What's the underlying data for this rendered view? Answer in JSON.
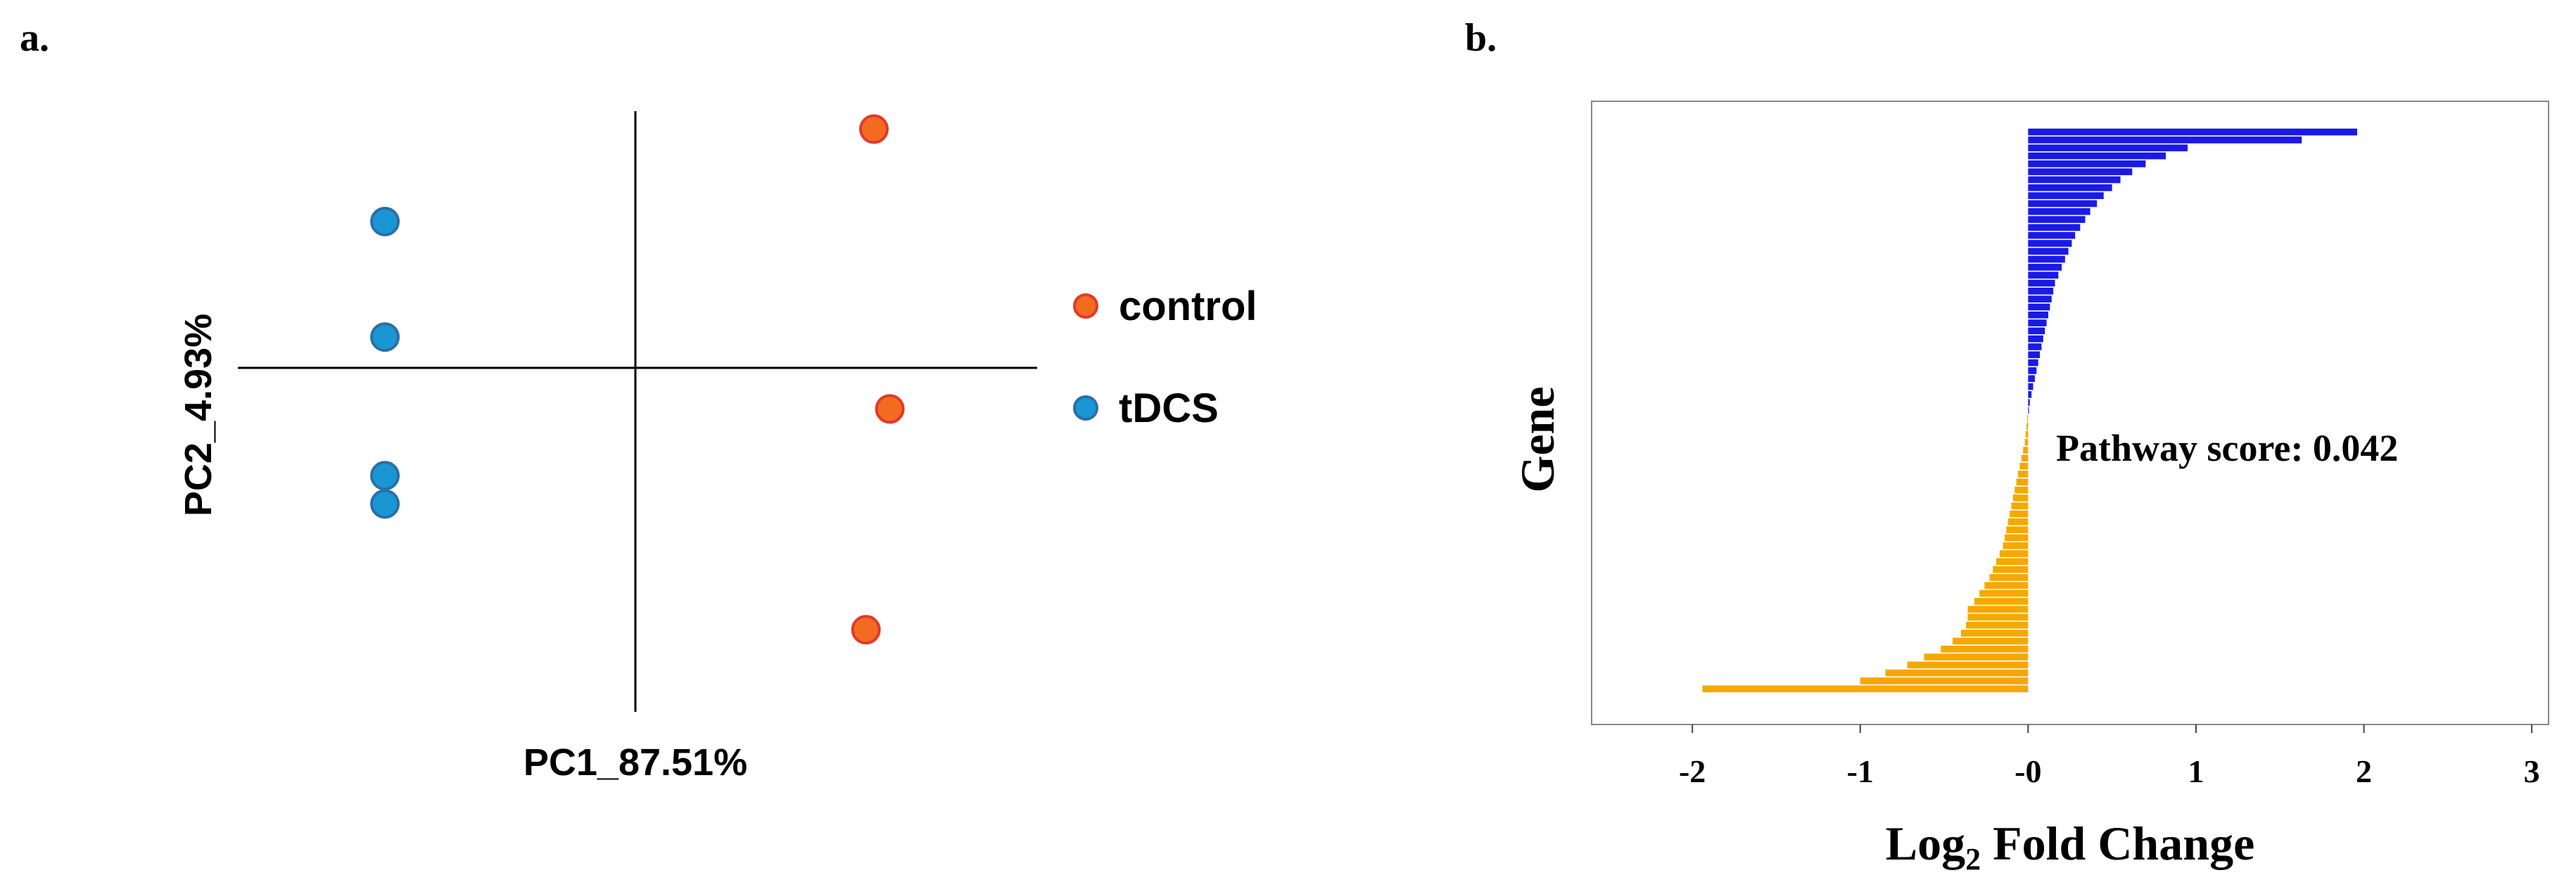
{
  "panels": {
    "a_label": "a.",
    "b_label": "b."
  },
  "chart_data": [
    {
      "type": "scatter",
      "title": "",
      "xlabel": "PC1_87.51%",
      "ylabel": "PC2_4.93%",
      "xlim": [
        -1.0,
        1.0
      ],
      "ylim": [
        -1.0,
        1.0
      ],
      "grid": false,
      "axes_through_origin": true,
      "legend_position": "right",
      "series": [
        {
          "name": "control",
          "color": "#f26b21",
          "edge_color": "#e03a2a",
          "points": [
            {
              "x": 0.6,
              "y": 0.93
            },
            {
              "x": 0.64,
              "y": -0.16
            },
            {
              "x": 0.58,
              "y": -1.02
            }
          ]
        },
        {
          "name": "tDCS",
          "color": "#1a96d4",
          "edge_color": "#2a6fa8",
          "points": [
            {
              "x": -0.63,
              "y": 0.57
            },
            {
              "x": -0.63,
              "y": 0.12
            },
            {
              "x": -0.63,
              "y": -0.42
            },
            {
              "x": -0.63,
              "y": -0.53
            }
          ]
        }
      ]
    },
    {
      "type": "bar",
      "orientation": "horizontal",
      "title": "",
      "xlabel": "Log",
      "xlabel_subscript": "2",
      "xlabel_suffix": " Fold Change",
      "ylabel": "Gene",
      "xlim": [
        -2.6,
        3.1
      ],
      "xticks": [
        {
          "value": -2,
          "label": "-2"
        },
        {
          "value": -1,
          "label": "-1"
        },
        {
          "value": 0,
          "label": "-0"
        },
        {
          "value": 1,
          "label": "1"
        },
        {
          "value": 2,
          "label": "2"
        },
        {
          "value": 3,
          "label": "3"
        }
      ],
      "annotation": "Pathway score: 0.042",
      "grid": false,
      "colors": {
        "positive": "#1a1ae6",
        "negative": "#f5a800"
      },
      "values": [
        1.96,
        1.63,
        0.95,
        0.82,
        0.7,
        0.62,
        0.55,
        0.5,
        0.45,
        0.41,
        0.37,
        0.34,
        0.31,
        0.28,
        0.26,
        0.24,
        0.22,
        0.2,
        0.18,
        0.16,
        0.15,
        0.14,
        0.13,
        0.12,
        0.11,
        0.1,
        0.09,
        0.08,
        0.07,
        0.06,
        0.05,
        0.04,
        0.03,
        0.02,
        0.01,
        0.005,
        -0.005,
        -0.01,
        -0.015,
        -0.02,
        -0.03,
        -0.04,
        -0.05,
        -0.06,
        -0.07,
        -0.08,
        -0.09,
        -0.1,
        -0.11,
        -0.12,
        -0.13,
        -0.14,
        -0.15,
        -0.17,
        -0.19,
        -0.21,
        -0.23,
        -0.26,
        -0.29,
        -0.32,
        -0.36,
        -0.36,
        -0.37,
        -0.4,
        -0.45,
        -0.52,
        -0.62,
        -0.72,
        -0.85,
        -1.0,
        -1.94
      ]
    }
  ]
}
